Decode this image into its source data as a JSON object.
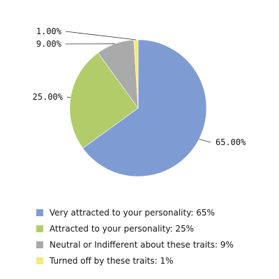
{
  "chart_data": {
    "type": "pie",
    "categories": [
      "Very attracted to your personality: 65%",
      "Attracted to your personality: 25%",
      "Neutral or Indifferent about these traits: 9%",
      "Turned off by these traits: 1%"
    ],
    "values": [
      65,
      25,
      9,
      1
    ],
    "data_labels": [
      "65.00%",
      "25.00%",
      "9.00%",
      "1.00%"
    ],
    "colors": [
      "#7f9bd4",
      "#b2cc6a",
      "#aaaaaa",
      "#f5ea78"
    ],
    "title": "",
    "legend_position": "bottom",
    "start_angle": "12 o'clock",
    "direction": "clockwise"
  }
}
